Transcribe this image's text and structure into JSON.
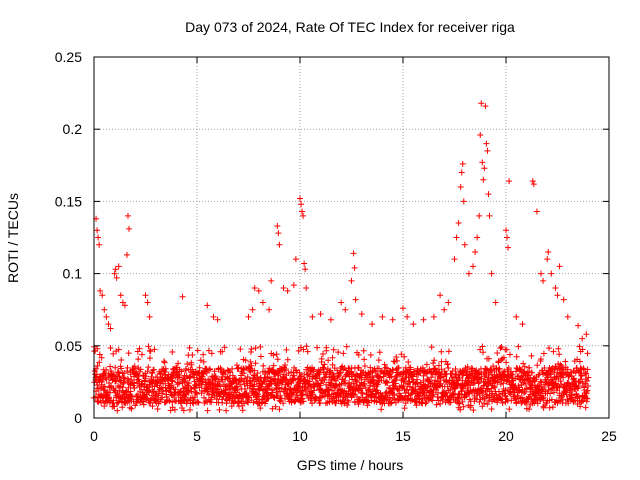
{
  "chart_data": {
    "type": "scatter",
    "title": "Day 073 of 2024, Rate Of TEC Index for receiver riga",
    "xlabel": "GPS time / hours",
    "ylabel": "ROTI / TECUs",
    "xlim": [
      0,
      25
    ],
    "ylim": [
      0,
      0.25
    ],
    "xticks": [
      0,
      5,
      10,
      15,
      20,
      25
    ],
    "yticks": [
      0,
      0.05,
      0.1,
      0.15,
      0.2,
      0.25
    ],
    "xtick_labels": [
      "0",
      "5",
      "10",
      "15",
      "20",
      "25"
    ],
    "ytick_labels": [
      "0",
      "0.05",
      "0.1",
      "0.15",
      "0.2",
      "0.25"
    ],
    "grid": true,
    "marker": "+",
    "color": "#ff0000",
    "baseline": {
      "x_range": [
        0,
        24
      ],
      "y_core_min": 0.01,
      "y_core_max": 0.035,
      "y_spread_max": 0.05
    },
    "series": [
      {
        "name": "ROTI",
        "points": [
          [
            0.1,
            0.138
          ],
          [
            0.15,
            0.13
          ],
          [
            0.2,
            0.125
          ],
          [
            0.25,
            0.12
          ],
          [
            0.3,
            0.088
          ],
          [
            0.4,
            0.085
          ],
          [
            0.5,
            0.075
          ],
          [
            0.6,
            0.07
          ],
          [
            0.7,
            0.065
          ],
          [
            0.8,
            0.062
          ],
          [
            1.0,
            0.1
          ],
          [
            1.05,
            0.103
          ],
          [
            1.1,
            0.097
          ],
          [
            1.2,
            0.105
          ],
          [
            1.3,
            0.085
          ],
          [
            1.4,
            0.08
          ],
          [
            1.5,
            0.078
          ],
          [
            1.6,
            0.113
          ],
          [
            1.65,
            0.14
          ],
          [
            1.7,
            0.131
          ],
          [
            2.5,
            0.085
          ],
          [
            2.6,
            0.08
          ],
          [
            2.7,
            0.07
          ],
          [
            4.3,
            0.084
          ],
          [
            5.5,
            0.078
          ],
          [
            5.8,
            0.07
          ],
          [
            6.0,
            0.068
          ],
          [
            7.5,
            0.07
          ],
          [
            7.7,
            0.075
          ],
          [
            7.8,
            0.09
          ],
          [
            8.0,
            0.088
          ],
          [
            8.2,
            0.08
          ],
          [
            8.5,
            0.075
          ],
          [
            8.6,
            0.095
          ],
          [
            8.9,
            0.133
          ],
          [
            8.95,
            0.128
          ],
          [
            9.0,
            0.12
          ],
          [
            9.2,
            0.09
          ],
          [
            9.4,
            0.088
          ],
          [
            9.7,
            0.092
          ],
          [
            9.8,
            0.11
          ],
          [
            10.0,
            0.152
          ],
          [
            10.05,
            0.148
          ],
          [
            10.1,
            0.143
          ],
          [
            10.15,
            0.14
          ],
          [
            10.2,
            0.107
          ],
          [
            10.25,
            0.103
          ],
          [
            10.3,
            0.09
          ],
          [
            10.6,
            0.07
          ],
          [
            11.0,
            0.072
          ],
          [
            11.5,
            0.068
          ],
          [
            12.0,
            0.08
          ],
          [
            12.2,
            0.075
          ],
          [
            12.5,
            0.095
          ],
          [
            12.6,
            0.114
          ],
          [
            12.65,
            0.104
          ],
          [
            12.7,
            0.082
          ],
          [
            13.0,
            0.072
          ],
          [
            13.5,
            0.065
          ],
          [
            14.0,
            0.07
          ],
          [
            14.5,
            0.068
          ],
          [
            15.0,
            0.076
          ],
          [
            15.2,
            0.07
          ],
          [
            15.5,
            0.065
          ],
          [
            16.0,
            0.068
          ],
          [
            16.5,
            0.07
          ],
          [
            16.8,
            0.085
          ],
          [
            17.0,
            0.075
          ],
          [
            17.2,
            0.08
          ],
          [
            17.5,
            0.11
          ],
          [
            17.6,
            0.125
          ],
          [
            17.7,
            0.135
          ],
          [
            17.8,
            0.16
          ],
          [
            17.85,
            0.17
          ],
          [
            17.9,
            0.176
          ],
          [
            17.95,
            0.15
          ],
          [
            18.0,
            0.12
          ],
          [
            18.2,
            0.1
          ],
          [
            18.4,
            0.105
          ],
          [
            18.5,
            0.115
          ],
          [
            18.6,
            0.125
          ],
          [
            18.7,
            0.14
          ],
          [
            18.75,
            0.196
          ],
          [
            18.8,
            0.218
          ],
          [
            18.85,
            0.177
          ],
          [
            18.9,
            0.165
          ],
          [
            18.95,
            0.173
          ],
          [
            19.0,
            0.216
          ],
          [
            19.05,
            0.19
          ],
          [
            19.1,
            0.185
          ],
          [
            19.15,
            0.155
          ],
          [
            19.2,
            0.14
          ],
          [
            19.3,
            0.1
          ],
          [
            19.5,
            0.08
          ],
          [
            20.0,
            0.13
          ],
          [
            20.05,
            0.125
          ],
          [
            20.1,
            0.118
          ],
          [
            20.15,
            0.164
          ],
          [
            20.5,
            0.07
          ],
          [
            20.8,
            0.065
          ],
          [
            21.3,
            0.164
          ],
          [
            21.35,
            0.162
          ],
          [
            21.5,
            0.143
          ],
          [
            21.7,
            0.1
          ],
          [
            21.8,
            0.095
          ],
          [
            22.0,
            0.11
          ],
          [
            22.05,
            0.115
          ],
          [
            22.2,
            0.1
          ],
          [
            22.4,
            0.09
          ],
          [
            22.5,
            0.085
          ],
          [
            22.6,
            0.105
          ],
          [
            22.8,
            0.082
          ],
          [
            23.0,
            0.07
          ],
          [
            23.5,
            0.064
          ],
          [
            23.7,
            0.055
          ],
          [
            23.9,
            0.058
          ]
        ]
      }
    ]
  }
}
